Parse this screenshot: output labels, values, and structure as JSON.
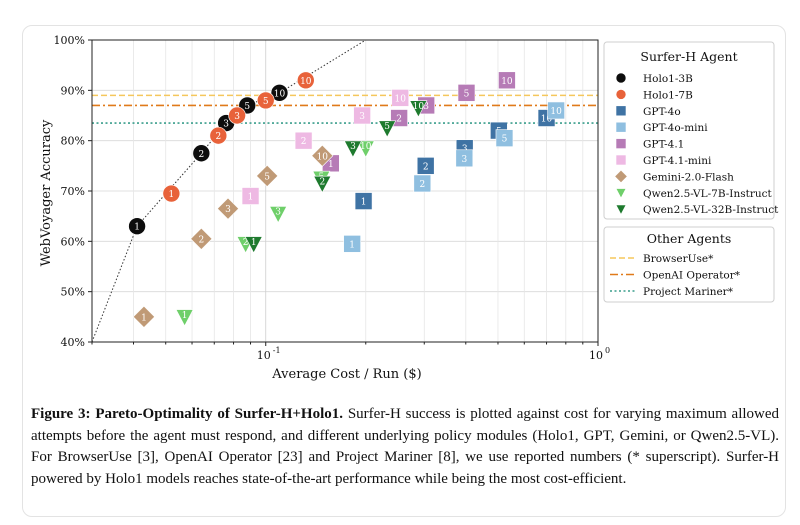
{
  "chart_data": {
    "type": "scatter",
    "xlabel": "Average Cost / Run ($)",
    "ylabel": "WebVoyager Accuracy",
    "x_scale": "log",
    "xlim": [
      0.03,
      1.0
    ],
    "ylim": [
      40,
      100
    ],
    "x_ticks": [
      {
        "value": 0.1,
        "label": "10",
        "exp": "-1"
      },
      {
        "value": 1.0,
        "label": "10",
        "exp": "0"
      }
    ],
    "y_ticks": [
      {
        "value": 40,
        "label": "40%"
      },
      {
        "value": 50,
        "label": "50%"
      },
      {
        "value": 60,
        "label": "60%"
      },
      {
        "value": 70,
        "label": "70%"
      },
      {
        "value": 80,
        "label": "80%"
      },
      {
        "value": 90,
        "label": "90%"
      },
      {
        "value": 100,
        "label": "100%"
      }
    ],
    "grid": true,
    "legend_title": "Surfer-H Agent",
    "legend2_title": "Other Agents",
    "series": [
      {
        "name": "Holo1-3B",
        "marker": "circle",
        "color": "#0d0d0d",
        "points": [
          {
            "x": 0.041,
            "y": 63,
            "label": "1"
          },
          {
            "x": 0.064,
            "y": 77.5,
            "label": "2"
          },
          {
            "x": 0.076,
            "y": 83.5,
            "label": "3"
          },
          {
            "x": 0.088,
            "y": 87,
            "label": "5"
          },
          {
            "x": 0.11,
            "y": 89.5,
            "label": "10"
          }
        ]
      },
      {
        "name": "Holo1-7B",
        "marker": "circle",
        "color": "#e8623a",
        "points": [
          {
            "x": 0.052,
            "y": 69.5,
            "label": "1"
          },
          {
            "x": 0.072,
            "y": 81,
            "label": "2"
          },
          {
            "x": 0.082,
            "y": 85,
            "label": "3"
          },
          {
            "x": 0.1,
            "y": 88,
            "label": "5"
          },
          {
            "x": 0.132,
            "y": 92,
            "label": "10"
          }
        ]
      },
      {
        "name": "GPT-4o",
        "marker": "square",
        "color": "#3f73a4",
        "points": [
          {
            "x": 0.197,
            "y": 68,
            "label": "1"
          },
          {
            "x": 0.303,
            "y": 75,
            "label": "2"
          },
          {
            "x": 0.397,
            "y": 78.5,
            "label": "3"
          },
          {
            "x": 0.503,
            "y": 82,
            "label": "5"
          },
          {
            "x": 0.7,
            "y": 84.5,
            "label": "10"
          }
        ]
      },
      {
        "name": "GPT-4o-mini",
        "marker": "square",
        "color": "#8fbfe0",
        "points": [
          {
            "x": 0.182,
            "y": 59.5,
            "label": "1"
          },
          {
            "x": 0.296,
            "y": 71.5,
            "label": "2"
          },
          {
            "x": 0.396,
            "y": 76.5,
            "label": "3"
          },
          {
            "x": 0.523,
            "y": 80.5,
            "label": "5"
          },
          {
            "x": 0.748,
            "y": 86,
            "label": "10"
          }
        ]
      },
      {
        "name": "GPT-4.1",
        "marker": "square",
        "color": "#b67bb6",
        "points": [
          {
            "x": 0.157,
            "y": 75.5,
            "label": "1"
          },
          {
            "x": 0.252,
            "y": 84.5,
            "label": "2"
          },
          {
            "x": 0.304,
            "y": 87,
            "label": "3"
          },
          {
            "x": 0.402,
            "y": 89.5,
            "label": "5"
          },
          {
            "x": 0.532,
            "y": 92,
            "label": "10"
          }
        ]
      },
      {
        "name": "GPT-4.1-mini",
        "marker": "square",
        "color": "#eeb9e3",
        "points": [
          {
            "x": 0.09,
            "y": 69,
            "label": "1"
          },
          {
            "x": 0.13,
            "y": 80,
            "label": "2"
          },
          {
            "x": 0.195,
            "y": 85,
            "label": "3"
          },
          {
            "x": 0.254,
            "y": 88.5,
            "label": "10"
          }
        ]
      },
      {
        "name": "Gemini-2.0-Flash",
        "marker": "diamond",
        "color": "#c09a76",
        "points": [
          {
            "x": 0.043,
            "y": 45,
            "label": "1"
          },
          {
            "x": 0.064,
            "y": 60.5,
            "label": "2"
          },
          {
            "x": 0.077,
            "y": 66.5,
            "label": "3"
          },
          {
            "x": 0.101,
            "y": 73,
            "label": "5"
          },
          {
            "x": 0.148,
            "y": 77,
            "label": "10"
          }
        ]
      },
      {
        "name": "Qwen2.5-VL-7B-Instruct",
        "marker": "triangle",
        "color": "#6fcf6a",
        "points": [
          {
            "x": 0.057,
            "y": 45,
            "label": "1"
          },
          {
            "x": 0.087,
            "y": 59.5,
            "label": "2"
          },
          {
            "x": 0.109,
            "y": 65.5,
            "label": "3"
          },
          {
            "x": 0.147,
            "y": 72.5,
            "label": "5"
          },
          {
            "x": 0.2,
            "y": 78.5,
            "label": "10"
          }
        ]
      },
      {
        "name": "Qwen2.5-VL-32B-Instruct",
        "marker": "triangle",
        "color": "#1e7a2e",
        "points": [
          {
            "x": 0.092,
            "y": 59.5,
            "label": "1"
          },
          {
            "x": 0.148,
            "y": 71.5,
            "label": "2"
          },
          {
            "x": 0.183,
            "y": 78.5,
            "label": "3"
          },
          {
            "x": 0.232,
            "y": 82.5,
            "label": "5"
          },
          {
            "x": 0.288,
            "y": 86.5,
            "label": "10"
          }
        ]
      }
    ],
    "reference_lines": [
      {
        "name": "BrowserUse*",
        "y": 89,
        "color": "#f5c75c",
        "style": "dashed"
      },
      {
        "name": "OpenAI Operator*",
        "y": 87,
        "color": "#e07a1a",
        "style": "dashdot"
      },
      {
        "name": "Project Mariner*",
        "y": 83.5,
        "color": "#3a9e8c",
        "style": "dotted"
      }
    ],
    "pareto_line": {
      "x": [
        0.03,
        0.041,
        0.064,
        0.076,
        0.088,
        0.11,
        0.2
      ],
      "y": [
        40,
        63,
        77.5,
        83.5,
        87,
        89.5,
        100
      ]
    }
  },
  "caption": {
    "label": "Figure 3:",
    "title": "Pareto-Optimality of Surfer-H+Holo1",
    "lines": [
      "Surfer-H success is plotted against cost for varying",
      "maximum allowed attempts before the agent must respond, and different underlying policy modules (Holo1,",
      "GPT, Gemini, or Qwen2.5-VL). For BrowserUse [3], OpenAI Operator [23] and Project Mariner [8], we use",
      "reported numbers (* superscript). Surfer-H powered by Holo1 models reaches state-of-the-art performance",
      "while being the most cost-efficient."
    ]
  }
}
